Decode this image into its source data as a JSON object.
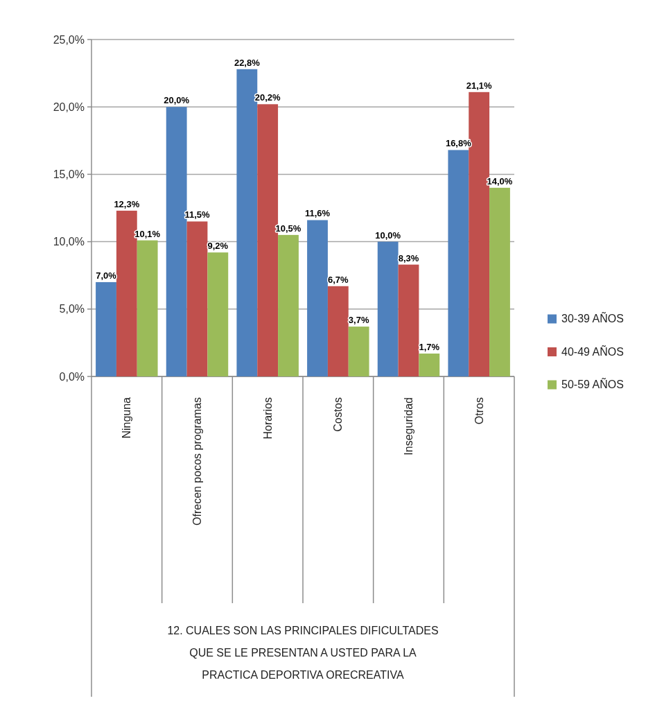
{
  "chart_data": {
    "type": "bar",
    "annotations": [
      "12. CUALES SON LAS PRINCIPALES DIFICULTADES QUE SE LE PRESENTAN A USTED PARA LA PRACTICA DEPORTIVA ORECREATIVA"
    ],
    "categories": [
      "Ninguna",
      "Ofrecen pocos programas",
      "Horarios",
      "Costos",
      "Inseguridad",
      "Otros"
    ],
    "series": [
      {
        "name": "30-39 AÑOS",
        "color": "#4f81bd",
        "values": [
          7.0,
          20.0,
          22.8,
          11.6,
          10.0,
          16.8
        ],
        "value_labels": [
          "7,0%",
          "20,0%",
          "22,8%",
          "11,6%",
          "10,0%",
          "16,8%"
        ]
      },
      {
        "name": "40-49 AÑOS",
        "color": "#c0504d",
        "values": [
          12.3,
          11.5,
          20.2,
          6.7,
          8.3,
          21.1
        ],
        "value_labels": [
          "12,3%",
          "11,5%",
          "20,2%",
          "6,7%",
          "8,3%",
          "21,1%"
        ]
      },
      {
        "name": "50-59 AÑOS",
        "color": "#9bbb59",
        "values": [
          10.1,
          9.2,
          10.5,
          3.7,
          1.7,
          14.0
        ],
        "value_labels": [
          "10,1%",
          "9,2%",
          "10,5%",
          "3,7%",
          "1,7%",
          "14,0%"
        ]
      }
    ],
    "ylim": [
      0,
      25
    ],
    "yticks": [
      {
        "value": 0,
        "label": "0,0%"
      },
      {
        "value": 5,
        "label": "5,0%"
      },
      {
        "value": 10,
        "label": "10,0%"
      },
      {
        "value": 15,
        "label": "15,0%"
      },
      {
        "value": 20,
        "label": "20,0%"
      },
      {
        "value": 25,
        "label": "25,0%"
      }
    ],
    "grid": "y",
    "legend": "right"
  }
}
